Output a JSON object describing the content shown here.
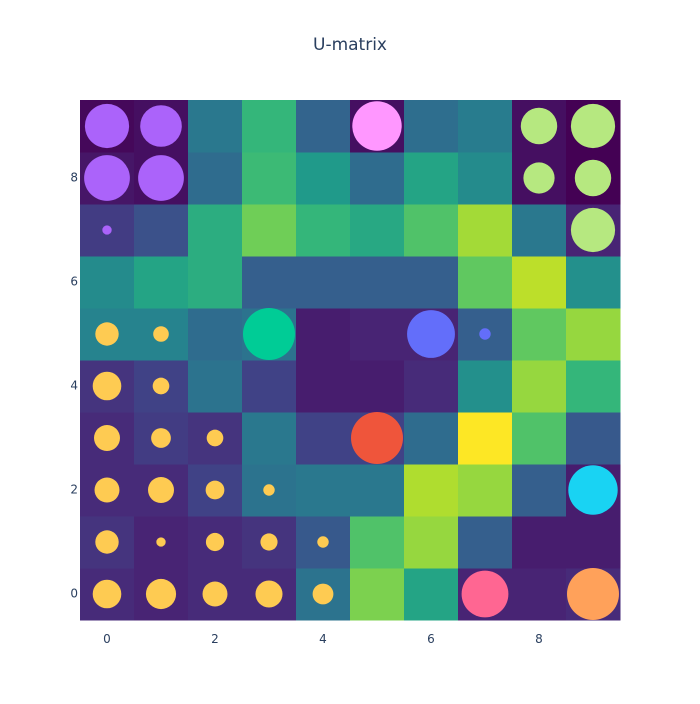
{
  "chart_data": {
    "type": "heatmap",
    "title": "U-matrix",
    "xlabel": "",
    "ylabel": "",
    "x_range": [
      -0.5,
      9.5
    ],
    "y_range": [
      -0.5,
      9.5
    ],
    "x_ticks": [
      0,
      2,
      4,
      6,
      8
    ],
    "x_tick_labels": [
      "0",
      "2",
      "4",
      "6",
      "8"
    ],
    "y_ticks": [
      0,
      2,
      4,
      6,
      8
    ],
    "y_tick_labels": [
      "0",
      "2",
      "4",
      "6",
      "8"
    ],
    "grid": false,
    "legend": "none",
    "colorscale": "viridis",
    "color_range": [
      0,
      1
    ],
    "heatmap_rows_y_ascending": [
      [
        0.12,
        0.1,
        0.12,
        0.12,
        0.38,
        0.8,
        0.58,
        0.1,
        0.1,
        0.12
      ],
      [
        0.15,
        0.1,
        0.12,
        0.15,
        0.28,
        0.72,
        0.84,
        0.3,
        0.08,
        0.08
      ],
      [
        0.12,
        0.12,
        0.2,
        0.38,
        0.4,
        0.4,
        0.88,
        0.84,
        0.3,
        0.08
      ],
      [
        0.12,
        0.18,
        0.15,
        0.4,
        0.2,
        0.2,
        0.35,
        1.0,
        0.72,
        0.28
      ],
      [
        0.15,
        0.2,
        0.38,
        0.2,
        0.08,
        0.08,
        0.12,
        0.5,
        0.84,
        0.66
      ],
      [
        0.45,
        0.45,
        0.35,
        0.38,
        0.08,
        0.1,
        0.1,
        0.3,
        0.75,
        0.84
      ],
      [
        0.48,
        0.58,
        0.62,
        0.3,
        0.3,
        0.3,
        0.3,
        0.75,
        0.9,
        0.5
      ],
      [
        0.18,
        0.25,
        0.62,
        0.78,
        0.66,
        0.6,
        0.72,
        0.86,
        0.4,
        0.1
      ],
      [
        0.06,
        0.04,
        0.35,
        0.68,
        0.54,
        0.35,
        0.58,
        0.48,
        0.04,
        0.0
      ],
      [
        0.02,
        0.04,
        0.4,
        0.66,
        0.32,
        0.04,
        0.36,
        0.42,
        0.04,
        0.0
      ]
    ],
    "markers": [
      {
        "x": 0,
        "y": 9,
        "size": 0.85,
        "color": "#ab63fa"
      },
      {
        "x": 1,
        "y": 9,
        "size": 0.8,
        "color": "#ab63fa"
      },
      {
        "x": 5,
        "y": 9,
        "size": 0.95,
        "color": "#ff97ff"
      },
      {
        "x": 8,
        "y": 9,
        "size": 0.7,
        "color": "#b6e880"
      },
      {
        "x": 9,
        "y": 9,
        "size": 0.85,
        "color": "#b6e880"
      },
      {
        "x": 0,
        "y": 8,
        "size": 0.88,
        "color": "#ab63fa"
      },
      {
        "x": 1,
        "y": 8,
        "size": 0.88,
        "color": "#ab63fa"
      },
      {
        "x": 8,
        "y": 8,
        "size": 0.6,
        "color": "#b6e880"
      },
      {
        "x": 9,
        "y": 8,
        "size": 0.7,
        "color": "#b6e880"
      },
      {
        "x": 0,
        "y": 7,
        "size": 0.18,
        "color": "#ab63fa"
      },
      {
        "x": 9,
        "y": 7,
        "size": 0.85,
        "color": "#b6e880"
      },
      {
        "x": 0,
        "y": 5,
        "size": 0.45,
        "color": "#fecb52"
      },
      {
        "x": 1,
        "y": 5,
        "size": 0.3,
        "color": "#fecb52"
      },
      {
        "x": 3,
        "y": 5,
        "size": 1.0,
        "color": "#00cc96"
      },
      {
        "x": 6,
        "y": 5,
        "size": 0.92,
        "color": "#636efa"
      },
      {
        "x": 7,
        "y": 5,
        "size": 0.22,
        "color": "#636efa"
      },
      {
        "x": 0,
        "y": 4,
        "size": 0.55,
        "color": "#fecb52"
      },
      {
        "x": 1,
        "y": 4,
        "size": 0.32,
        "color": "#fecb52"
      },
      {
        "x": 0,
        "y": 3,
        "size": 0.5,
        "color": "#fecb52"
      },
      {
        "x": 1,
        "y": 3,
        "size": 0.38,
        "color": "#fecb52"
      },
      {
        "x": 2,
        "y": 3,
        "size": 0.32,
        "color": "#fecb52"
      },
      {
        "x": 5,
        "y": 3,
        "size": 1.0,
        "color": "#ef553b"
      },
      {
        "x": 0,
        "y": 2,
        "size": 0.48,
        "color": "#fecb52"
      },
      {
        "x": 1,
        "y": 2,
        "size": 0.5,
        "color": "#fecb52"
      },
      {
        "x": 2,
        "y": 2,
        "size": 0.36,
        "color": "#fecb52"
      },
      {
        "x": 3,
        "y": 2,
        "size": 0.22,
        "color": "#fecb52"
      },
      {
        "x": 9,
        "y": 2,
        "size": 0.95,
        "color": "#19d3f3"
      },
      {
        "x": 0,
        "y": 1,
        "size": 0.45,
        "color": "#fecb52"
      },
      {
        "x": 1,
        "y": 1,
        "size": 0.18,
        "color": "#fecb52"
      },
      {
        "x": 2,
        "y": 1,
        "size": 0.35,
        "color": "#fecb52"
      },
      {
        "x": 3,
        "y": 1,
        "size": 0.33,
        "color": "#fecb52"
      },
      {
        "x": 4,
        "y": 1,
        "size": 0.22,
        "color": "#fecb52"
      },
      {
        "x": 0,
        "y": 0,
        "size": 0.55,
        "color": "#fecb52"
      },
      {
        "x": 1,
        "y": 0,
        "size": 0.58,
        "color": "#fecb52"
      },
      {
        "x": 2,
        "y": 0,
        "size": 0.48,
        "color": "#fecb52"
      },
      {
        "x": 3,
        "y": 0,
        "size": 0.52,
        "color": "#fecb52"
      },
      {
        "x": 4,
        "y": 0,
        "size": 0.4,
        "color": "#fecb52"
      },
      {
        "x": 7,
        "y": 0,
        "size": 0.9,
        "color": "#ff6692"
      },
      {
        "x": 9,
        "y": 0,
        "size": 1.0,
        "color": "#ffa15a"
      }
    ]
  }
}
